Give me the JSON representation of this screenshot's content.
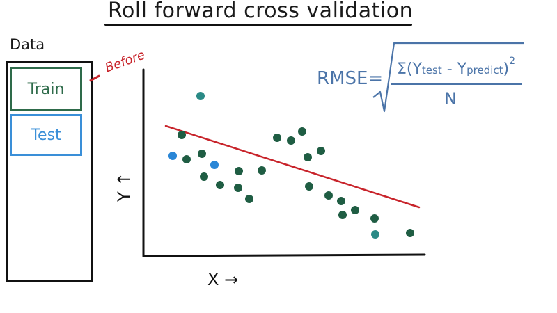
{
  "title": "Roll forward cross validation",
  "data_panel": {
    "label": "Data",
    "train_label": "Train",
    "test_label": "Test"
  },
  "annotation_before": "Before",
  "axes": {
    "x_label": "X →",
    "y_label": "Y ↑"
  },
  "formula": {
    "lhs": "RMSE=",
    "numerator": "Σ(Y",
    "sub_test": "test",
    "minus": " - Y",
    "sub_predict": "predict",
    "close": ")",
    "power": "2",
    "denominator": "N"
  },
  "colors": {
    "train": "#2e6b4a",
    "test": "#3a8fd8",
    "train_dot": "#1f5d43",
    "test_dot": "#2a86d6",
    "teal_dot": "#2a8a86",
    "line": "#c8242b",
    "formula": "#4b74a8",
    "ink": "#111111"
  }
}
